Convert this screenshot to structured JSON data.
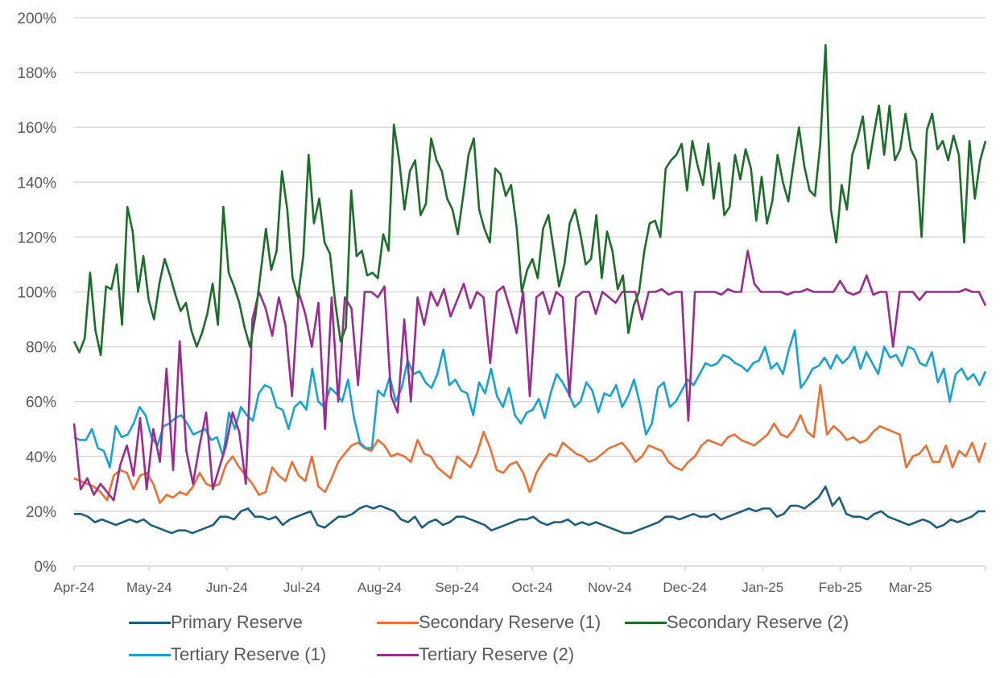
{
  "chart_data": {
    "type": "line",
    "title": "",
    "xlabel": "",
    "ylabel": "",
    "ylim": [
      0,
      200
    ],
    "y_ticks": [
      "0%",
      "20%",
      "40%",
      "60%",
      "80%",
      "100%",
      "120%",
      "140%",
      "160%",
      "180%",
      "200%"
    ],
    "y_tick_values": [
      0,
      20,
      40,
      60,
      80,
      100,
      120,
      140,
      160,
      180,
      200
    ],
    "x_range_days": [
      0,
      364
    ],
    "x_tick_labels": [
      "Apr-24",
      "May-24",
      "Jun-24",
      "Jul-24",
      "Aug-24",
      "Sep-24",
      "Oct-24",
      "Nov-24",
      "Dec-24",
      "Jan-25",
      "Feb-25",
      "Mar-25"
    ],
    "x_tick_days": [
      0,
      30,
      61,
      91,
      122,
      153,
      183,
      214,
      244,
      275,
      306,
      334,
      364
    ],
    "x_step_days": 3,
    "grid": true,
    "legend_position": "bottom",
    "series": [
      {
        "name": "Primary Reserve",
        "color": "#1a5f82",
        "values": [
          19,
          19,
          18,
          16,
          17,
          16,
          15,
          16,
          17,
          16,
          17,
          15,
          14,
          13,
          12,
          13,
          13,
          12,
          13,
          14,
          15,
          18,
          18,
          17,
          20,
          21,
          18,
          18,
          17,
          18,
          15,
          17,
          18,
          19,
          20,
          15,
          14,
          16,
          18,
          18,
          19,
          21,
          22,
          21,
          22,
          21,
          20,
          17,
          16,
          18,
          14,
          16,
          17,
          15,
          16,
          18,
          18,
          17,
          16,
          15,
          13,
          14,
          15,
          16,
          17,
          17,
          18,
          16,
          15,
          16,
          16,
          17,
          15,
          16,
          15,
          16,
          15,
          14,
          13,
          12,
          12,
          13,
          14,
          15,
          16,
          18,
          18,
          17,
          18,
          19,
          18,
          18,
          19,
          17,
          18,
          19,
          20,
          21,
          20,
          21,
          21,
          18,
          19,
          22,
          22,
          21,
          23,
          25,
          29,
          22,
          25,
          19,
          18,
          18,
          17,
          19,
          20,
          18,
          17,
          16,
          15,
          16,
          17,
          16,
          14,
          15,
          17,
          16,
          17,
          18,
          20,
          20
        ],
        "legend": "Primary Reserve"
      },
      {
        "name": "Secondary Reserve (1)",
        "color": "#ed7032",
        "values": [
          32,
          31,
          30,
          29,
          27,
          24,
          33,
          35,
          34,
          28,
          33,
          34,
          30,
          23,
          26,
          25,
          27,
          26,
          29,
          34,
          30,
          29,
          30,
          37,
          40,
          36,
          33,
          30,
          26,
          27,
          36,
          33,
          31,
          38,
          33,
          31,
          40,
          29,
          27,
          32,
          38,
          41,
          44,
          45,
          43,
          42,
          46,
          44,
          40,
          41,
          40,
          38,
          46,
          41,
          40,
          36,
          34,
          32,
          40,
          38,
          36,
          41,
          49,
          43,
          35,
          34,
          37,
          38,
          34,
          27,
          34,
          38,
          41,
          40,
          45,
          43,
          41,
          40,
          38,
          39,
          41,
          43,
          44,
          45,
          42,
          38,
          40,
          44,
          43,
          42,
          38,
          36,
          35,
          38,
          40,
          44,
          46,
          45,
          44,
          47,
          48,
          46,
          45,
          44,
          46,
          48,
          52,
          48,
          47,
          50,
          55,
          49,
          47,
          66,
          48,
          51,
          49,
          46,
          47,
          45,
          46,
          49,
          51,
          50,
          49,
          48,
          36,
          40,
          41,
          44,
          38,
          38,
          44,
          36,
          42,
          40,
          45,
          38,
          45
        ],
        "legend": "Secondary Reserve (1)"
      },
      {
        "name": "Secondary Reserve (2)",
        "color": "#1a6e27",
        "values": [
          82,
          78,
          83,
          107,
          86,
          77,
          102,
          101,
          110,
          88,
          131,
          122,
          100,
          113,
          97,
          90,
          103,
          112,
          106,
          99,
          93,
          96,
          86,
          80,
          85,
          92,
          103,
          88,
          131,
          107,
          102,
          96,
          87,
          80,
          91,
          107,
          123,
          108,
          115,
          144,
          130,
          105,
          98,
          113,
          150,
          125,
          134,
          118,
          114,
          96,
          82,
          87,
          137,
          113,
          115,
          106,
          107,
          105,
          121,
          115,
          161,
          148,
          130,
          144,
          148,
          128,
          132,
          156,
          148,
          144,
          134,
          130,
          121,
          135,
          150,
          156,
          130,
          123,
          118,
          145,
          143,
          135,
          139,
          124,
          100,
          108,
          112,
          105,
          123,
          128,
          115,
          102,
          110,
          125,
          130,
          121,
          110,
          112,
          128,
          105,
          122,
          115,
          101,
          106,
          85,
          95,
          100,
          115,
          125,
          126,
          120,
          145,
          148,
          150,
          154,
          137,
          155,
          146,
          139,
          154,
          134,
          147,
          128,
          131,
          150,
          141,
          152,
          145,
          126,
          142,
          125,
          133,
          150,
          140,
          133,
          147,
          160,
          146,
          137,
          135,
          154,
          190,
          130,
          118,
          139,
          130,
          150,
          156,
          164,
          145,
          157,
          168,
          150,
          168,
          148,
          152,
          165,
          152,
          148,
          120,
          159,
          165,
          152,
          155,
          148,
          157,
          150,
          118,
          155,
          134,
          148,
          155
        ],
        "legend": "Secondary Reserve (2)"
      },
      {
        "name": "Tertiary Reserve (1)",
        "color": "#17a2d6",
        "values": [
          47,
          46,
          46,
          50,
          43,
          42,
          36,
          51,
          47,
          48,
          52,
          58,
          55,
          47,
          44,
          51,
          52,
          54,
          55,
          52,
          48,
          49,
          50,
          46,
          47,
          40,
          56,
          50,
          58,
          55,
          53,
          63,
          66,
          65,
          58,
          57,
          50,
          58,
          60,
          57,
          72,
          60,
          58,
          65,
          63,
          60,
          68,
          54,
          45,
          43,
          43,
          64,
          62,
          69,
          60,
          65,
          75,
          70,
          71,
          67,
          65,
          70,
          79,
          66,
          68,
          64,
          63,
          55,
          67,
          63,
          72,
          62,
          58,
          65,
          55,
          52,
          56,
          57,
          61,
          54,
          63,
          70,
          67,
          63,
          58,
          60,
          67,
          64,
          56,
          63,
          62,
          66,
          58,
          62,
          68,
          59,
          48,
          52,
          65,
          67,
          58,
          60,
          64,
          68,
          66,
          70,
          74,
          73,
          74,
          77,
          76,
          74,
          73,
          71,
          74,
          75,
          80,
          72,
          74,
          70,
          79,
          86,
          65,
          68,
          72,
          73,
          76,
          72,
          77,
          74,
          76,
          80,
          72,
          78,
          74,
          70,
          80,
          76,
          77,
          73,
          80,
          79,
          74,
          73,
          78,
          67,
          72,
          60,
          70,
          72,
          68,
          70,
          66,
          71
        ],
        "legend": "Tertiary Reserve (1)"
      },
      {
        "name": "Tertiary Reserve (2)",
        "color": "#9b2a91",
        "values": [
          52,
          28,
          32,
          26,
          30,
          27,
          24,
          37,
          44,
          33,
          54,
          28,
          50,
          38,
          72,
          35,
          82,
          42,
          30,
          44,
          56,
          28,
          36,
          44,
          56,
          49,
          30,
          90,
          100,
          94,
          84,
          98,
          88,
          62,
          100,
          92,
          80,
          96,
          50,
          98,
          60,
          98,
          94,
          66,
          100,
          100,
          98,
          102,
          62,
          56,
          90,
          60,
          98,
          88,
          100,
          95,
          101,
          91,
          97,
          103,
          94,
          100,
          98,
          74,
          100,
          102,
          94,
          85,
          100,
          62,
          98,
          100,
          92,
          100,
          98,
          62,
          98,
          100,
          100,
          92,
          100,
          98,
          96,
          100,
          100,
          100,
          90,
          100,
          100,
          101,
          99,
          100,
          100,
          53,
          100,
          100,
          100,
          100,
          99,
          101,
          100,
          100,
          115,
          103,
          100,
          100,
          100,
          100,
          99,
          100,
          100,
          101,
          100,
          100,
          100,
          100,
          104,
          100,
          99,
          100,
          106,
          99,
          100,
          100,
          80,
          100,
          100,
          100,
          97,
          100,
          100,
          100,
          100,
          100,
          100,
          101,
          100,
          100,
          95
        ],
        "legend": "Tertiary Reserve (2)"
      }
    ]
  }
}
